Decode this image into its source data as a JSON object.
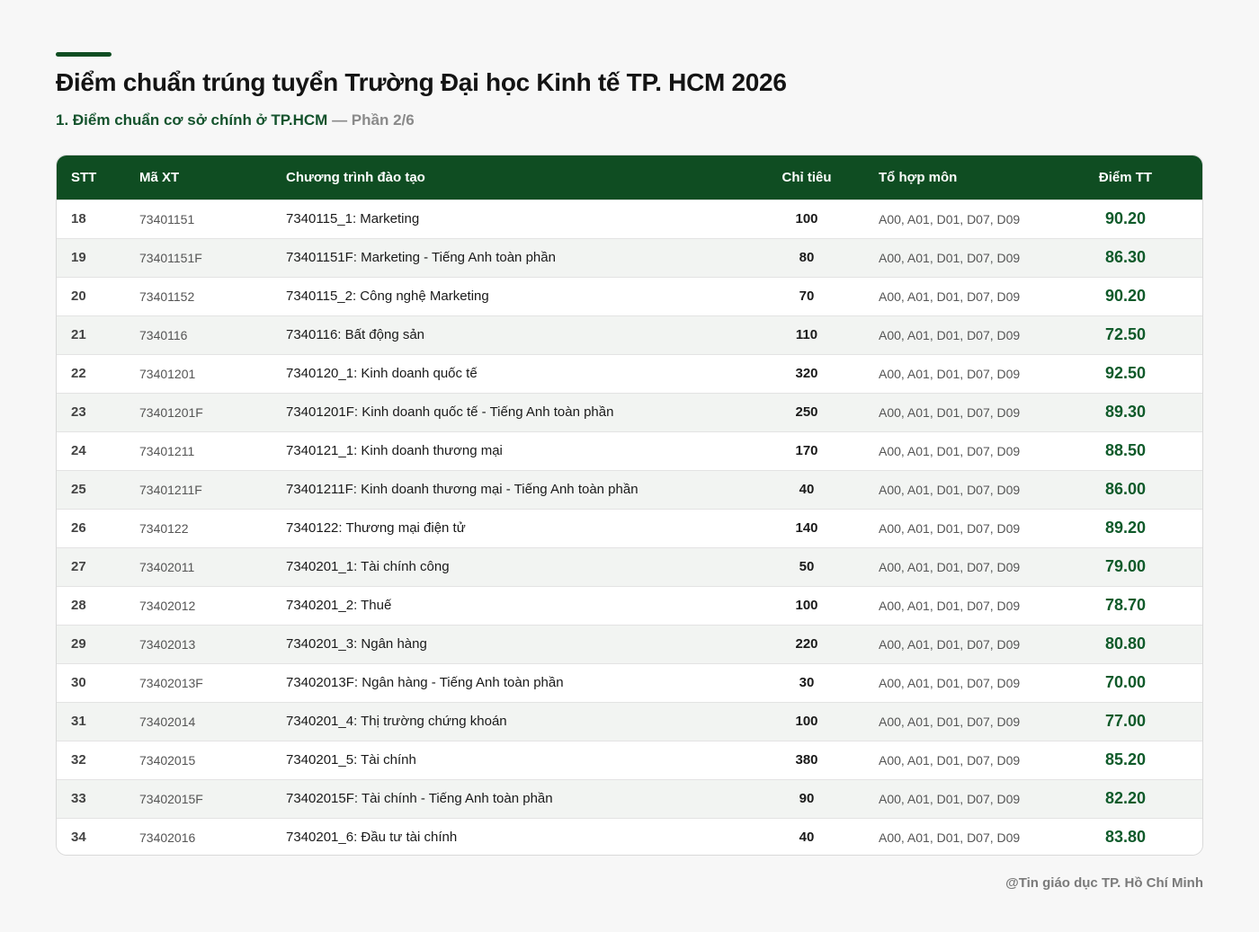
{
  "header": {
    "title": "Điểm chuẩn trúng tuyển Trường Đại học Kinh tế TP. HCM 2026",
    "subtitle_main": "1. Điểm chuẩn cơ sở chính ở TP.HCM",
    "subtitle_sep": " — ",
    "subtitle_part": "Phần 2/6"
  },
  "colors": {
    "accent": "#0f4d22",
    "score": "#0f5a2a"
  },
  "table": {
    "columns": [
      "STT",
      "Mã XT",
      "Chương trình đào tạo",
      "Chỉ tiêu",
      "Tổ hợp môn",
      "Điểm TT"
    ],
    "rows": [
      [
        "18",
        "73401151",
        "7340115_1: Marketing",
        "100",
        "A00, A01, D01, D07, D09",
        "90.20"
      ],
      [
        "19",
        "73401151F",
        "73401151F: Marketing - Tiếng Anh toàn phần",
        "80",
        "A00, A01, D01, D07, D09",
        "86.30"
      ],
      [
        "20",
        "73401152",
        "7340115_2: Công nghệ Marketing",
        "70",
        "A00, A01, D01, D07, D09",
        "90.20"
      ],
      [
        "21",
        "7340116",
        "7340116: Bất động sản",
        "110",
        "A00, A01, D01, D07, D09",
        "72.50"
      ],
      [
        "22",
        "73401201",
        "7340120_1: Kinh doanh quốc tế",
        "320",
        "A00, A01, D01, D07, D09",
        "92.50"
      ],
      [
        "23",
        "73401201F",
        "73401201F: Kinh doanh quốc tế - Tiếng Anh toàn phần",
        "250",
        "A00, A01, D01, D07, D09",
        "89.30"
      ],
      [
        "24",
        "73401211",
        "7340121_1: Kinh doanh thương mại",
        "170",
        "A00, A01, D01, D07, D09",
        "88.50"
      ],
      [
        "25",
        "73401211F",
        "73401211F: Kinh doanh thương mại - Tiếng Anh toàn phần",
        "40",
        "A00, A01, D01, D07, D09",
        "86.00"
      ],
      [
        "26",
        "7340122",
        "7340122: Thương mại điện tử",
        "140",
        "A00, A01, D01, D07, D09",
        "89.20"
      ],
      [
        "27",
        "73402011",
        "7340201_1: Tài chính công",
        "50",
        "A00, A01, D01, D07, D09",
        "79.00"
      ],
      [
        "28",
        "73402012",
        "7340201_2: Thuế",
        "100",
        "A00, A01, D01, D07, D09",
        "78.70"
      ],
      [
        "29",
        "73402013",
        "7340201_3: Ngân hàng",
        "220",
        "A00, A01, D01, D07, D09",
        "80.80"
      ],
      [
        "30",
        "73402013F",
        "73402013F: Ngân hàng - Tiếng Anh toàn phần",
        "30",
        "A00, A01, D01, D07, D09",
        "70.00"
      ],
      [
        "31",
        "73402014",
        "7340201_4: Thị trường chứng khoán",
        "100",
        "A00, A01, D01, D07, D09",
        "77.00"
      ],
      [
        "32",
        "73402015",
        "7340201_5: Tài chính",
        "380",
        "A00, A01, D01, D07, D09",
        "85.20"
      ],
      [
        "33",
        "73402015F",
        "73402015F: Tài chính - Tiếng Anh toàn phần",
        "90",
        "A00, A01, D01, D07, D09",
        "82.20"
      ],
      [
        "34",
        "73402016",
        "7340201_6: Đầu tư tài chính",
        "40",
        "A00, A01, D01, D07, D09",
        "83.80"
      ]
    ]
  },
  "footer": {
    "credit": "@Tin giáo dục TP. Hồ Chí Minh"
  }
}
